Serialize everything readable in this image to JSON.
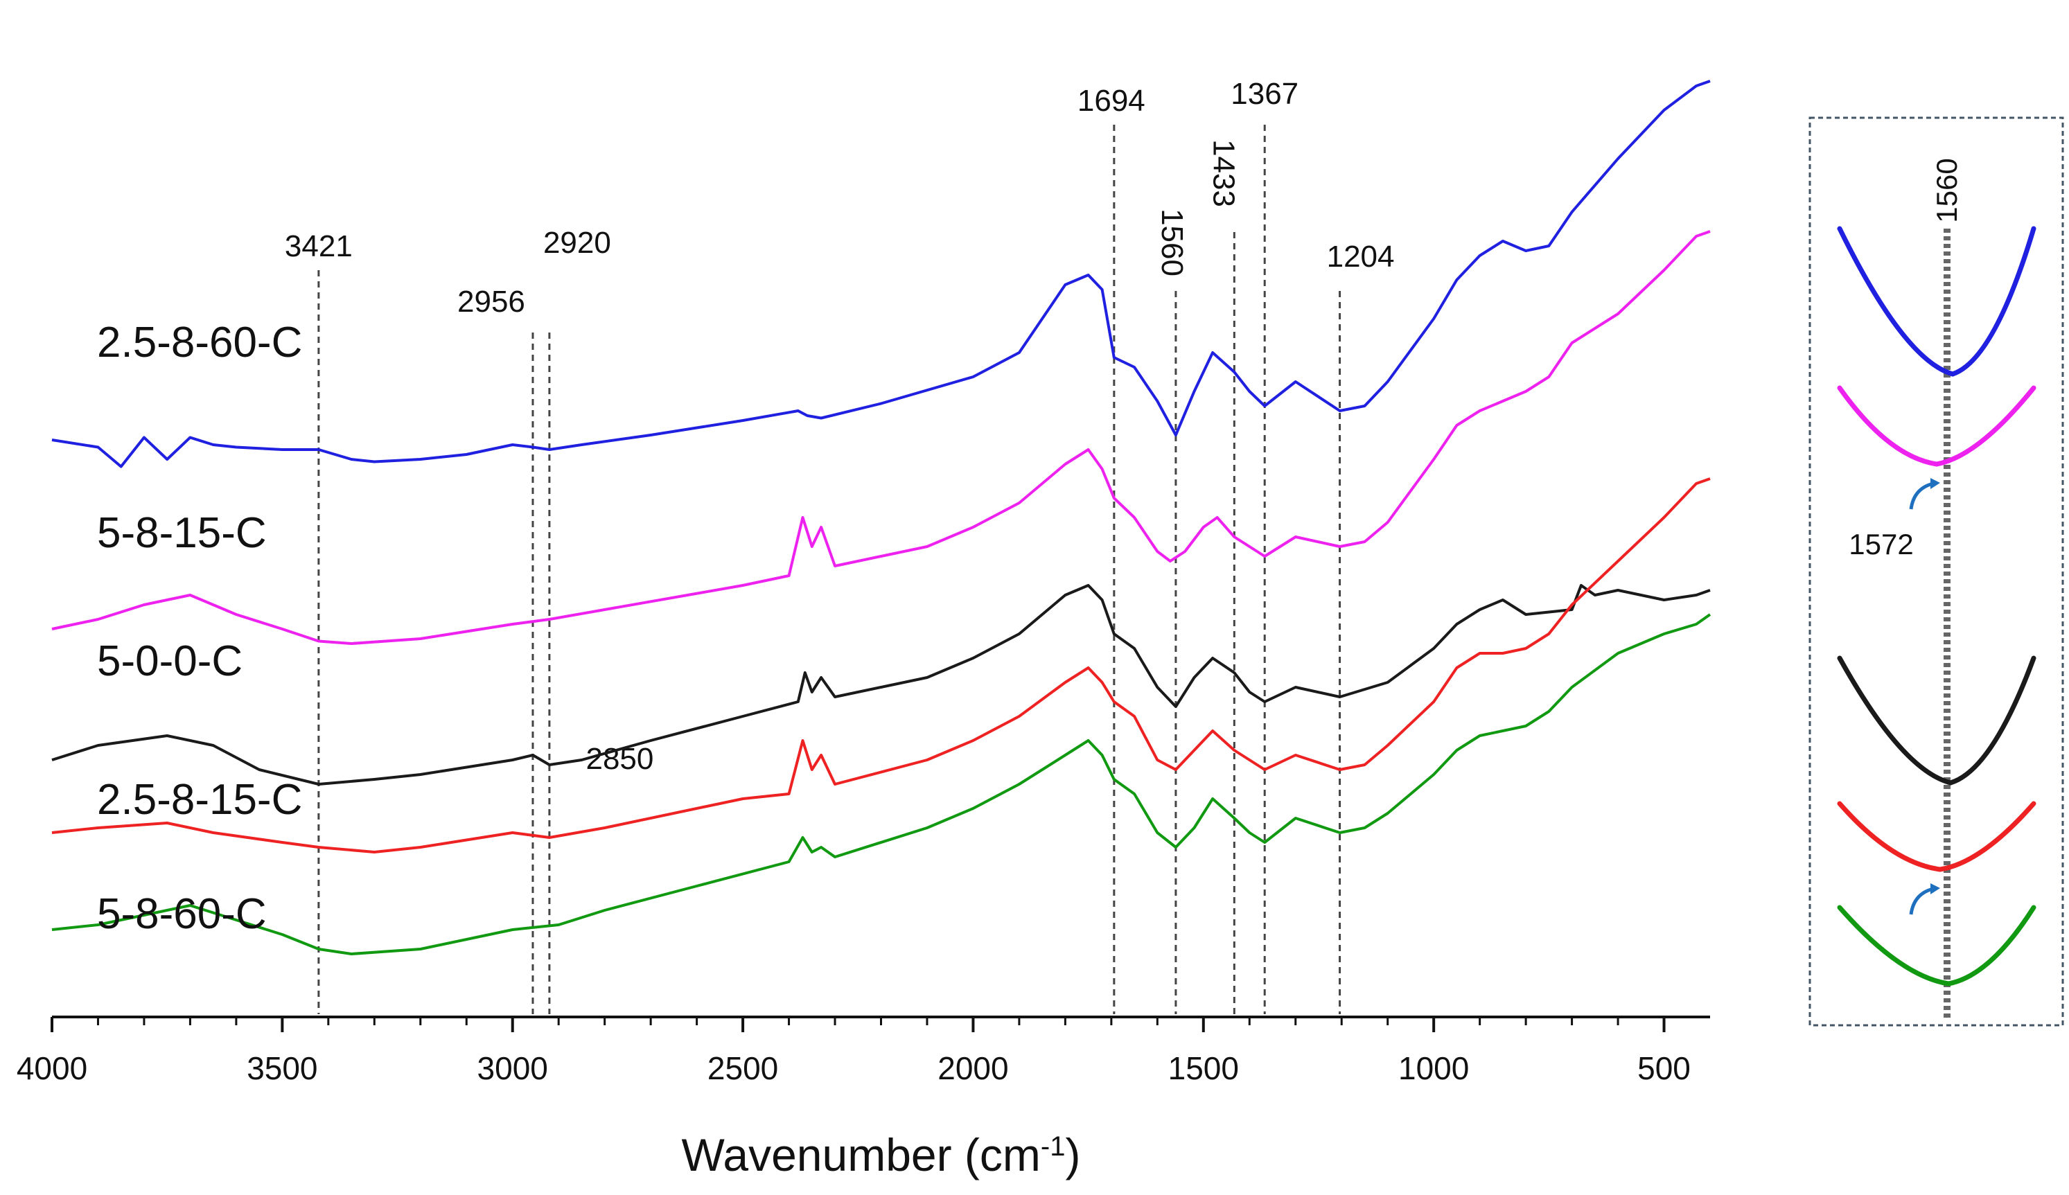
{
  "chart_data": {
    "type": "line",
    "xlabel": "Wavenumber (cm",
    "xlabel_sup": "-1",
    "xlabel_close": ")",
    "xlim": [
      4000,
      400
    ],
    "x_ticks": [
      4000,
      3500,
      3000,
      2500,
      2000,
      1500,
      1000,
      500
    ],
    "ylabel": "",
    "peak_lines": [
      {
        "x": 3421,
        "label": "3421"
      },
      {
        "x": 2956,
        "label": "2956"
      },
      {
        "x": 2920,
        "label": "2920"
      },
      {
        "x": 1694,
        "label": "1694"
      },
      {
        "x": 1560,
        "label": "1560"
      },
      {
        "x": 1433,
        "label": "1433"
      },
      {
        "x": 1367,
        "label": "1367"
      },
      {
        "x": 1204,
        "label": "1204"
      }
    ],
    "extra_annotations": [
      {
        "x": 2850,
        "label": "2850"
      }
    ],
    "series": [
      {
        "name": "2.5-8-60-C",
        "color": "#2020e0",
        "offset": 11.3,
        "points": [
          [
            4000,
            0.2
          ],
          [
            3900,
            0.05
          ],
          [
            3850,
            -0.35
          ],
          [
            3800,
            0.25
          ],
          [
            3750,
            -0.2
          ],
          [
            3700,
            0.25
          ],
          [
            3650,
            0.1
          ],
          [
            3600,
            0.05
          ],
          [
            3500,
            0.0
          ],
          [
            3421,
            0.0
          ],
          [
            3350,
            -0.2
          ],
          [
            3300,
            -0.25
          ],
          [
            3200,
            -0.2
          ],
          [
            3100,
            -0.1
          ],
          [
            3000,
            0.1
          ],
          [
            2956,
            0.05
          ],
          [
            2920,
            0.0
          ],
          [
            2850,
            0.1
          ],
          [
            2700,
            0.3
          ],
          [
            2500,
            0.6
          ],
          [
            2380,
            0.8
          ],
          [
            2360,
            0.7
          ],
          [
            2330,
            0.65
          ],
          [
            2200,
            0.95
          ],
          [
            2000,
            1.5
          ],
          [
            1900,
            2.0
          ],
          [
            1800,
            3.4
          ],
          [
            1750,
            3.6
          ],
          [
            1720,
            3.3
          ],
          [
            1694,
            1.9
          ],
          [
            1650,
            1.7
          ],
          [
            1600,
            1.0
          ],
          [
            1560,
            0.3
          ],
          [
            1520,
            1.2
          ],
          [
            1480,
            2.0
          ],
          [
            1433,
            1.6
          ],
          [
            1400,
            1.2
          ],
          [
            1367,
            0.9
          ],
          [
            1300,
            1.4
          ],
          [
            1204,
            0.8
          ],
          [
            1150,
            0.9
          ],
          [
            1100,
            1.4
          ],
          [
            1000,
            2.7
          ],
          [
            950,
            3.5
          ],
          [
            900,
            4.0
          ],
          [
            850,
            4.3
          ],
          [
            800,
            4.1
          ],
          [
            750,
            4.2
          ],
          [
            700,
            4.9
          ],
          [
            600,
            6.0
          ],
          [
            500,
            7.0
          ],
          [
            430,
            7.5
          ],
          [
            400,
            7.6
          ]
        ]
      },
      {
        "name": "5-8-15-C",
        "color": "#ee22ee",
        "offset": 7.3,
        "points": [
          [
            4000,
            0.3
          ],
          [
            3900,
            0.5
          ],
          [
            3800,
            0.8
          ],
          [
            3700,
            1.0
          ],
          [
            3600,
            0.6
          ],
          [
            3500,
            0.3
          ],
          [
            3421,
            0.05
          ],
          [
            3350,
            0.0
          ],
          [
            3200,
            0.1
          ],
          [
            3000,
            0.4
          ],
          [
            2920,
            0.5
          ],
          [
            2800,
            0.7
          ],
          [
            2500,
            1.2
          ],
          [
            2400,
            1.4
          ],
          [
            2370,
            2.6
          ],
          [
            2350,
            2.0
          ],
          [
            2330,
            2.4
          ],
          [
            2300,
            1.6
          ],
          [
            2100,
            2.0
          ],
          [
            2000,
            2.4
          ],
          [
            1900,
            2.9
          ],
          [
            1800,
            3.7
          ],
          [
            1750,
            4.0
          ],
          [
            1720,
            3.6
          ],
          [
            1694,
            3.0
          ],
          [
            1650,
            2.6
          ],
          [
            1600,
            1.9
          ],
          [
            1572,
            1.7
          ],
          [
            1540,
            1.9
          ],
          [
            1500,
            2.4
          ],
          [
            1470,
            2.6
          ],
          [
            1433,
            2.2
          ],
          [
            1400,
            2.0
          ],
          [
            1367,
            1.8
          ],
          [
            1300,
            2.2
          ],
          [
            1204,
            2.0
          ],
          [
            1150,
            2.1
          ],
          [
            1100,
            2.5
          ],
          [
            1000,
            3.8
          ],
          [
            950,
            4.5
          ],
          [
            900,
            4.8
          ],
          [
            850,
            5.0
          ],
          [
            800,
            5.2
          ],
          [
            750,
            5.5
          ],
          [
            700,
            6.2
          ],
          [
            600,
            6.8
          ],
          [
            500,
            7.7
          ],
          [
            430,
            8.4
          ],
          [
            400,
            8.5
          ]
        ]
      },
      {
        "name": "5-0-0-C",
        "color": "#1a1a1a",
        "offset": 4.4,
        "points": [
          [
            4000,
            0.5
          ],
          [
            3900,
            0.8
          ],
          [
            3750,
            1.0
          ],
          [
            3650,
            0.8
          ],
          [
            3550,
            0.3
          ],
          [
            3421,
            0.0
          ],
          [
            3300,
            0.1
          ],
          [
            3200,
            0.2
          ],
          [
            3000,
            0.5
          ],
          [
            2956,
            0.6
          ],
          [
            2920,
            0.4
          ],
          [
            2850,
            0.5
          ],
          [
            2700,
            0.9
          ],
          [
            2500,
            1.4
          ],
          [
            2380,
            1.7
          ],
          [
            2365,
            2.3
          ],
          [
            2350,
            1.9
          ],
          [
            2330,
            2.2
          ],
          [
            2300,
            1.8
          ],
          [
            2100,
            2.2
          ],
          [
            2000,
            2.6
          ],
          [
            1900,
            3.1
          ],
          [
            1800,
            3.9
          ],
          [
            1750,
            4.1
          ],
          [
            1720,
            3.8
          ],
          [
            1694,
            3.1
          ],
          [
            1650,
            2.8
          ],
          [
            1600,
            2.0
          ],
          [
            1560,
            1.6
          ],
          [
            1520,
            2.2
          ],
          [
            1480,
            2.6
          ],
          [
            1433,
            2.3
          ],
          [
            1400,
            1.9
          ],
          [
            1367,
            1.7
          ],
          [
            1300,
            2.0
          ],
          [
            1204,
            1.8
          ],
          [
            1100,
            2.1
          ],
          [
            1000,
            2.8
          ],
          [
            950,
            3.3
          ],
          [
            900,
            3.6
          ],
          [
            850,
            3.8
          ],
          [
            800,
            3.5
          ],
          [
            700,
            3.6
          ],
          [
            680,
            4.1
          ],
          [
            650,
            3.9
          ],
          [
            600,
            4.0
          ],
          [
            500,
            3.8
          ],
          [
            430,
            3.9
          ],
          [
            400,
            4.0
          ]
        ]
      },
      {
        "name": "2.5-8-15-C",
        "color": "#ee2222",
        "offset": 3.0,
        "points": [
          [
            4000,
            0.4
          ],
          [
            3900,
            0.5
          ],
          [
            3750,
            0.6
          ],
          [
            3650,
            0.4
          ],
          [
            3500,
            0.2
          ],
          [
            3421,
            0.1
          ],
          [
            3300,
            0.0
          ],
          [
            3200,
            0.1
          ],
          [
            3000,
            0.4
          ],
          [
            2920,
            0.3
          ],
          [
            2800,
            0.5
          ],
          [
            2500,
            1.1
          ],
          [
            2400,
            1.2
          ],
          [
            2370,
            2.3
          ],
          [
            2350,
            1.7
          ],
          [
            2330,
            2.0
          ],
          [
            2300,
            1.4
          ],
          [
            2100,
            1.9
          ],
          [
            2000,
            2.3
          ],
          [
            1900,
            2.8
          ],
          [
            1800,
            3.5
          ],
          [
            1750,
            3.8
          ],
          [
            1720,
            3.5
          ],
          [
            1694,
            3.1
          ],
          [
            1650,
            2.8
          ],
          [
            1600,
            1.9
          ],
          [
            1560,
            1.7
          ],
          [
            1520,
            2.1
          ],
          [
            1480,
            2.5
          ],
          [
            1433,
            2.1
          ],
          [
            1400,
            1.9
          ],
          [
            1367,
            1.7
          ],
          [
            1300,
            2.0
          ],
          [
            1204,
            1.7
          ],
          [
            1150,
            1.8
          ],
          [
            1100,
            2.2
          ],
          [
            1000,
            3.1
          ],
          [
            950,
            3.8
          ],
          [
            900,
            4.1
          ],
          [
            850,
            4.1
          ],
          [
            800,
            4.2
          ],
          [
            750,
            4.5
          ],
          [
            700,
            5.1
          ],
          [
            600,
            6.0
          ],
          [
            500,
            6.9
          ],
          [
            430,
            7.6
          ],
          [
            400,
            7.7
          ]
        ]
      },
      {
        "name": "5-8-60-C",
        "color": "#119911",
        "offset": 0.9,
        "points": [
          [
            4000,
            0.5
          ],
          [
            3900,
            0.6
          ],
          [
            3800,
            0.8
          ],
          [
            3700,
            1.0
          ],
          [
            3600,
            0.7
          ],
          [
            3500,
            0.4
          ],
          [
            3421,
            0.1
          ],
          [
            3350,
            0.0
          ],
          [
            3200,
            0.1
          ],
          [
            3000,
            0.5
          ],
          [
            2900,
            0.6
          ],
          [
            2800,
            0.9
          ],
          [
            2600,
            1.4
          ],
          [
            2400,
            1.9
          ],
          [
            2370,
            2.4
          ],
          [
            2350,
            2.1
          ],
          [
            2330,
            2.2
          ],
          [
            2300,
            2.0
          ],
          [
            2100,
            2.6
          ],
          [
            2000,
            3.0
          ],
          [
            1900,
            3.5
          ],
          [
            1800,
            4.1
          ],
          [
            1750,
            4.4
          ],
          [
            1720,
            4.1
          ],
          [
            1694,
            3.6
          ],
          [
            1650,
            3.3
          ],
          [
            1600,
            2.5
          ],
          [
            1560,
            2.2
          ],
          [
            1520,
            2.6
          ],
          [
            1480,
            3.2
          ],
          [
            1433,
            2.8
          ],
          [
            1400,
            2.5
          ],
          [
            1367,
            2.3
          ],
          [
            1300,
            2.8
          ],
          [
            1204,
            2.5
          ],
          [
            1150,
            2.6
          ],
          [
            1100,
            2.9
          ],
          [
            1000,
            3.7
          ],
          [
            950,
            4.2
          ],
          [
            900,
            4.5
          ],
          [
            850,
            4.6
          ],
          [
            800,
            4.7
          ],
          [
            750,
            5.0
          ],
          [
            700,
            5.5
          ],
          [
            600,
            6.2
          ],
          [
            500,
            6.6
          ],
          [
            430,
            6.8
          ],
          [
            400,
            7.0
          ]
        ]
      }
    ],
    "inset": {
      "peak_label": "1560",
      "shift_label": "1572",
      "series_order": [
        "2.5-8-60-C",
        "5-8-15-C",
        "5-0-0-C",
        "2.5-8-15-C",
        "5-8-60-C"
      ]
    }
  }
}
